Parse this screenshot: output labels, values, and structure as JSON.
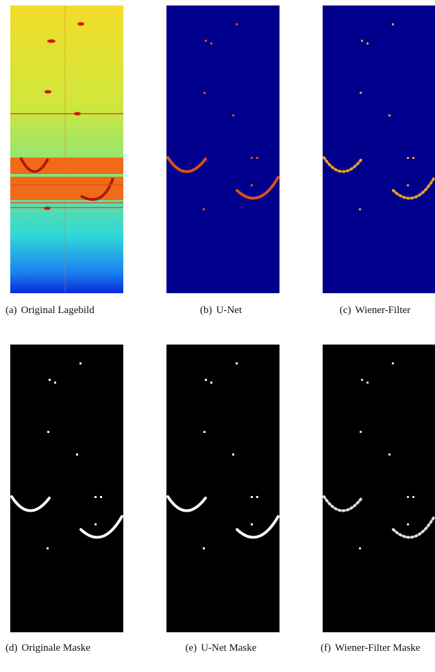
{
  "figures": [
    {
      "label": "(a)",
      "caption": "Original Lagebild"
    },
    {
      "label": "(b)",
      "caption": "U-Net"
    },
    {
      "label": "(c)",
      "caption": "Wiener-Filter"
    },
    {
      "label": "(d)",
      "caption": "Originale Maske"
    },
    {
      "label": "(e)",
      "caption": "U-Net Maske"
    },
    {
      "label": "(f)",
      "caption": "Wiener-Filter Maske"
    }
  ]
}
